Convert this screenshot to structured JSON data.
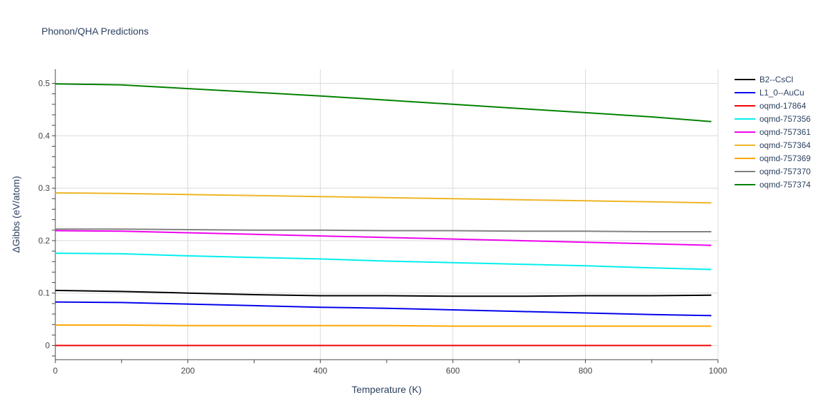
{
  "chart_data": {
    "type": "line",
    "title": "Phonon/QHA Predictions",
    "xlabel": "Temperature (K)",
    "ylabel": "ΔGibbs (eV/atom)",
    "xlim": [
      0,
      1000
    ],
    "ylim": [
      -0.027,
      0.527
    ],
    "xticks": [
      0,
      200,
      400,
      600,
      800,
      1000
    ],
    "yticks": [
      0,
      0.1,
      0.2,
      0.3,
      0.4,
      0.5
    ],
    "xtick_labels": [
      "0",
      "200",
      "400",
      "600",
      "800",
      "1000"
    ],
    "ytick_labels": [
      "0",
      "0.1",
      "0.2",
      "0.3",
      "0.4",
      "0.5"
    ],
    "grid": true,
    "legend_position": "right",
    "x": [
      0,
      100,
      200,
      300,
      400,
      500,
      600,
      700,
      800,
      900,
      990
    ],
    "series": [
      {
        "name": "B2--CsCl",
        "color": "#000000",
        "values": [
          0.105,
          0.103,
          0.1,
          0.097,
          0.095,
          0.095,
          0.094,
          0.094,
          0.095,
          0.095,
          0.096
        ]
      },
      {
        "name": "L1_0--AuCu",
        "color": "#0000ee",
        "values": [
          0.083,
          0.082,
          0.079,
          0.076,
          0.073,
          0.071,
          0.068,
          0.065,
          0.062,
          0.059,
          0.057
        ]
      },
      {
        "name": "oqmd-17864",
        "color": "#ee0000",
        "values": [
          0,
          0,
          0,
          0,
          0,
          0,
          0,
          0,
          0,
          0,
          0
        ]
      },
      {
        "name": "oqmd-757356",
        "color": "#00eeee",
        "values": [
          0.176,
          0.175,
          0.171,
          0.168,
          0.165,
          0.161,
          0.158,
          0.155,
          0.152,
          0.148,
          0.145
        ]
      },
      {
        "name": "oqmd-757361",
        "color": "#ee00ee",
        "values": [
          0.219,
          0.218,
          0.215,
          0.212,
          0.209,
          0.206,
          0.203,
          0.2,
          0.197,
          0.194,
          0.191
        ]
      },
      {
        "name": "oqmd-757364",
        "color": "#eeb422",
        "values": [
          0.291,
          0.29,
          0.288,
          0.286,
          0.284,
          0.282,
          0.28,
          0.278,
          0.276,
          0.274,
          0.272
        ]
      },
      {
        "name": "oqmd-757369",
        "color": "#ffa500",
        "values": [
          0.039,
          0.039,
          0.038,
          0.038,
          0.038,
          0.038,
          0.037,
          0.037,
          0.037,
          0.037,
          0.037
        ]
      },
      {
        "name": "oqmd-757370",
        "color": "#808080",
        "values": [
          0.222,
          0.222,
          0.221,
          0.22,
          0.22,
          0.219,
          0.219,
          0.218,
          0.218,
          0.217,
          0.217
        ]
      },
      {
        "name": "oqmd-757374",
        "color": "#008000",
        "values": [
          0.499,
          0.497,
          0.49,
          0.483,
          0.476,
          0.468,
          0.46,
          0.452,
          0.444,
          0.436,
          0.427
        ]
      }
    ]
  }
}
